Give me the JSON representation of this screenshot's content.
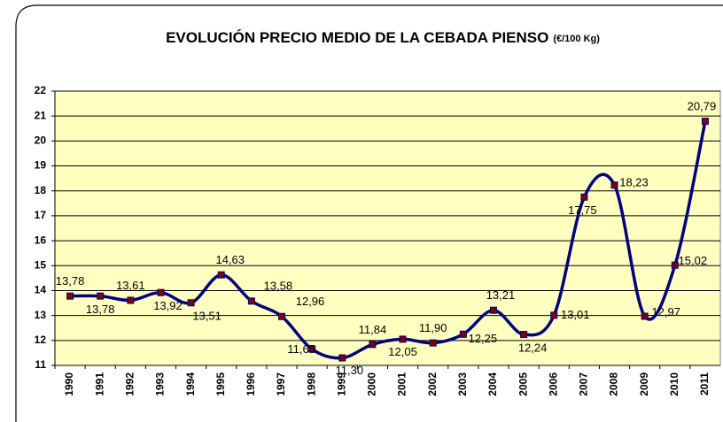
{
  "chart_data": {
    "type": "line",
    "title": "EVOLUCIÓN PRECIO MEDIO DE LA CEBADA PIENSO",
    "subtitle": "(€/100 Kg)",
    "categories": [
      "1990",
      "1991",
      "1992",
      "1993",
      "1994",
      "1995",
      "1996",
      "1997",
      "1998",
      "1999",
      "2000",
      "2001",
      "2002",
      "2003",
      "2004",
      "2005",
      "2006",
      "2007",
      "2008",
      "2009",
      "2010",
      "2011"
    ],
    "series": [
      {
        "name": "Precio medio",
        "color": "#000080",
        "marker_color": "#800000",
        "values": [
          13.78,
          13.78,
          13.61,
          13.92,
          13.51,
          14.63,
          13.58,
          12.96,
          11.65,
          11.3,
          11.84,
          12.05,
          11.9,
          12.25,
          13.21,
          12.24,
          13.01,
          17.75,
          18.23,
          12.97,
          15.02,
          20.79
        ],
        "value_labels": [
          "13,78",
          "13,78",
          "13,61",
          "13,92",
          "13,51",
          "14,63",
          "13,58",
          "12,96",
          "11,65",
          "11,30",
          "11,84",
          "12,05",
          "11,90",
          "12,25",
          "13,21",
          "12,24",
          "13,01",
          "17,75",
          "18,23",
          "12,97",
          "15,02",
          "20,79"
        ]
      }
    ],
    "ylim": [
      11,
      22
    ],
    "yticks": [
      11,
      12,
      13,
      14,
      15,
      16,
      17,
      18,
      19,
      20,
      21,
      22
    ],
    "grid": true,
    "plot_background": "#ffffc0"
  }
}
